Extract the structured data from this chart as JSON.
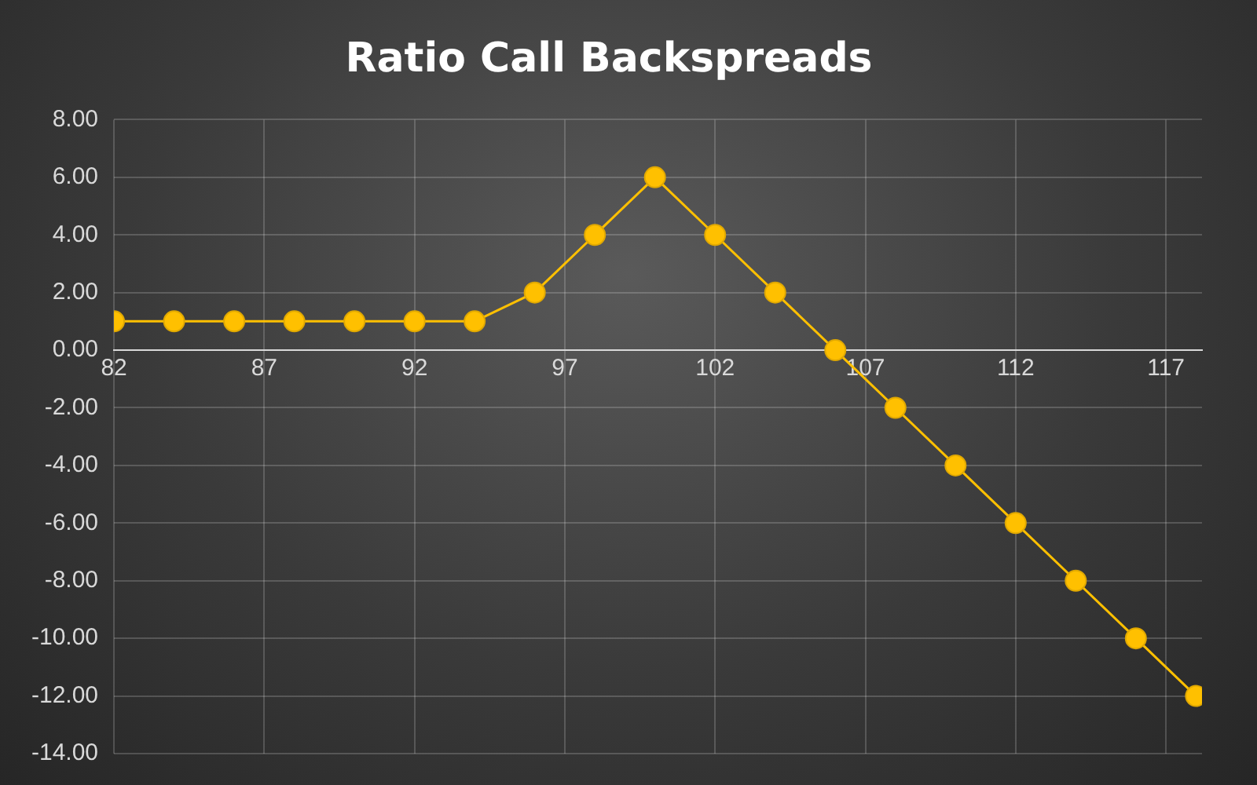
{
  "chart_data": {
    "type": "line",
    "title": "Ratio Call Backspreads",
    "x": [
      82,
      84,
      86,
      88,
      90,
      92,
      94,
      96,
      98,
      100,
      102,
      104,
      106,
      108,
      110,
      112,
      114,
      116,
      118
    ],
    "series": [
      {
        "color": "#ffc000",
        "values": [
          1,
          1,
          1,
          1,
          1,
          1,
          1,
          2,
          4,
          6,
          4,
          2,
          0,
          -2,
          -4,
          -6,
          -8,
          -10,
          -12
        ]
      }
    ],
    "xlim": [
      82,
      118.2
    ],
    "xticks": [
      82,
      87,
      92,
      97,
      102,
      107,
      112,
      117
    ],
    "ylim": [
      -14,
      8
    ],
    "yticks": [
      {
        "value": 8,
        "label": "8.00"
      },
      {
        "value": 6,
        "label": "6.00"
      },
      {
        "value": 4,
        "label": "4.00"
      },
      {
        "value": 2,
        "label": "2.00"
      },
      {
        "value": 0,
        "label": "0.00"
      },
      {
        "value": -2,
        "label": "-2.00"
      },
      {
        "value": -4,
        "label": "-4.00"
      },
      {
        "value": -6,
        "label": "-6.00"
      },
      {
        "value": -8,
        "label": "-8.00"
      },
      {
        "value": -10,
        "label": "-10.00"
      },
      {
        "value": -12,
        "label": "-12.00"
      },
      {
        "value": -14,
        "label": "-14.00"
      }
    ],
    "grid": true,
    "marker": "circle",
    "line_style": "solid",
    "legend": false
  }
}
